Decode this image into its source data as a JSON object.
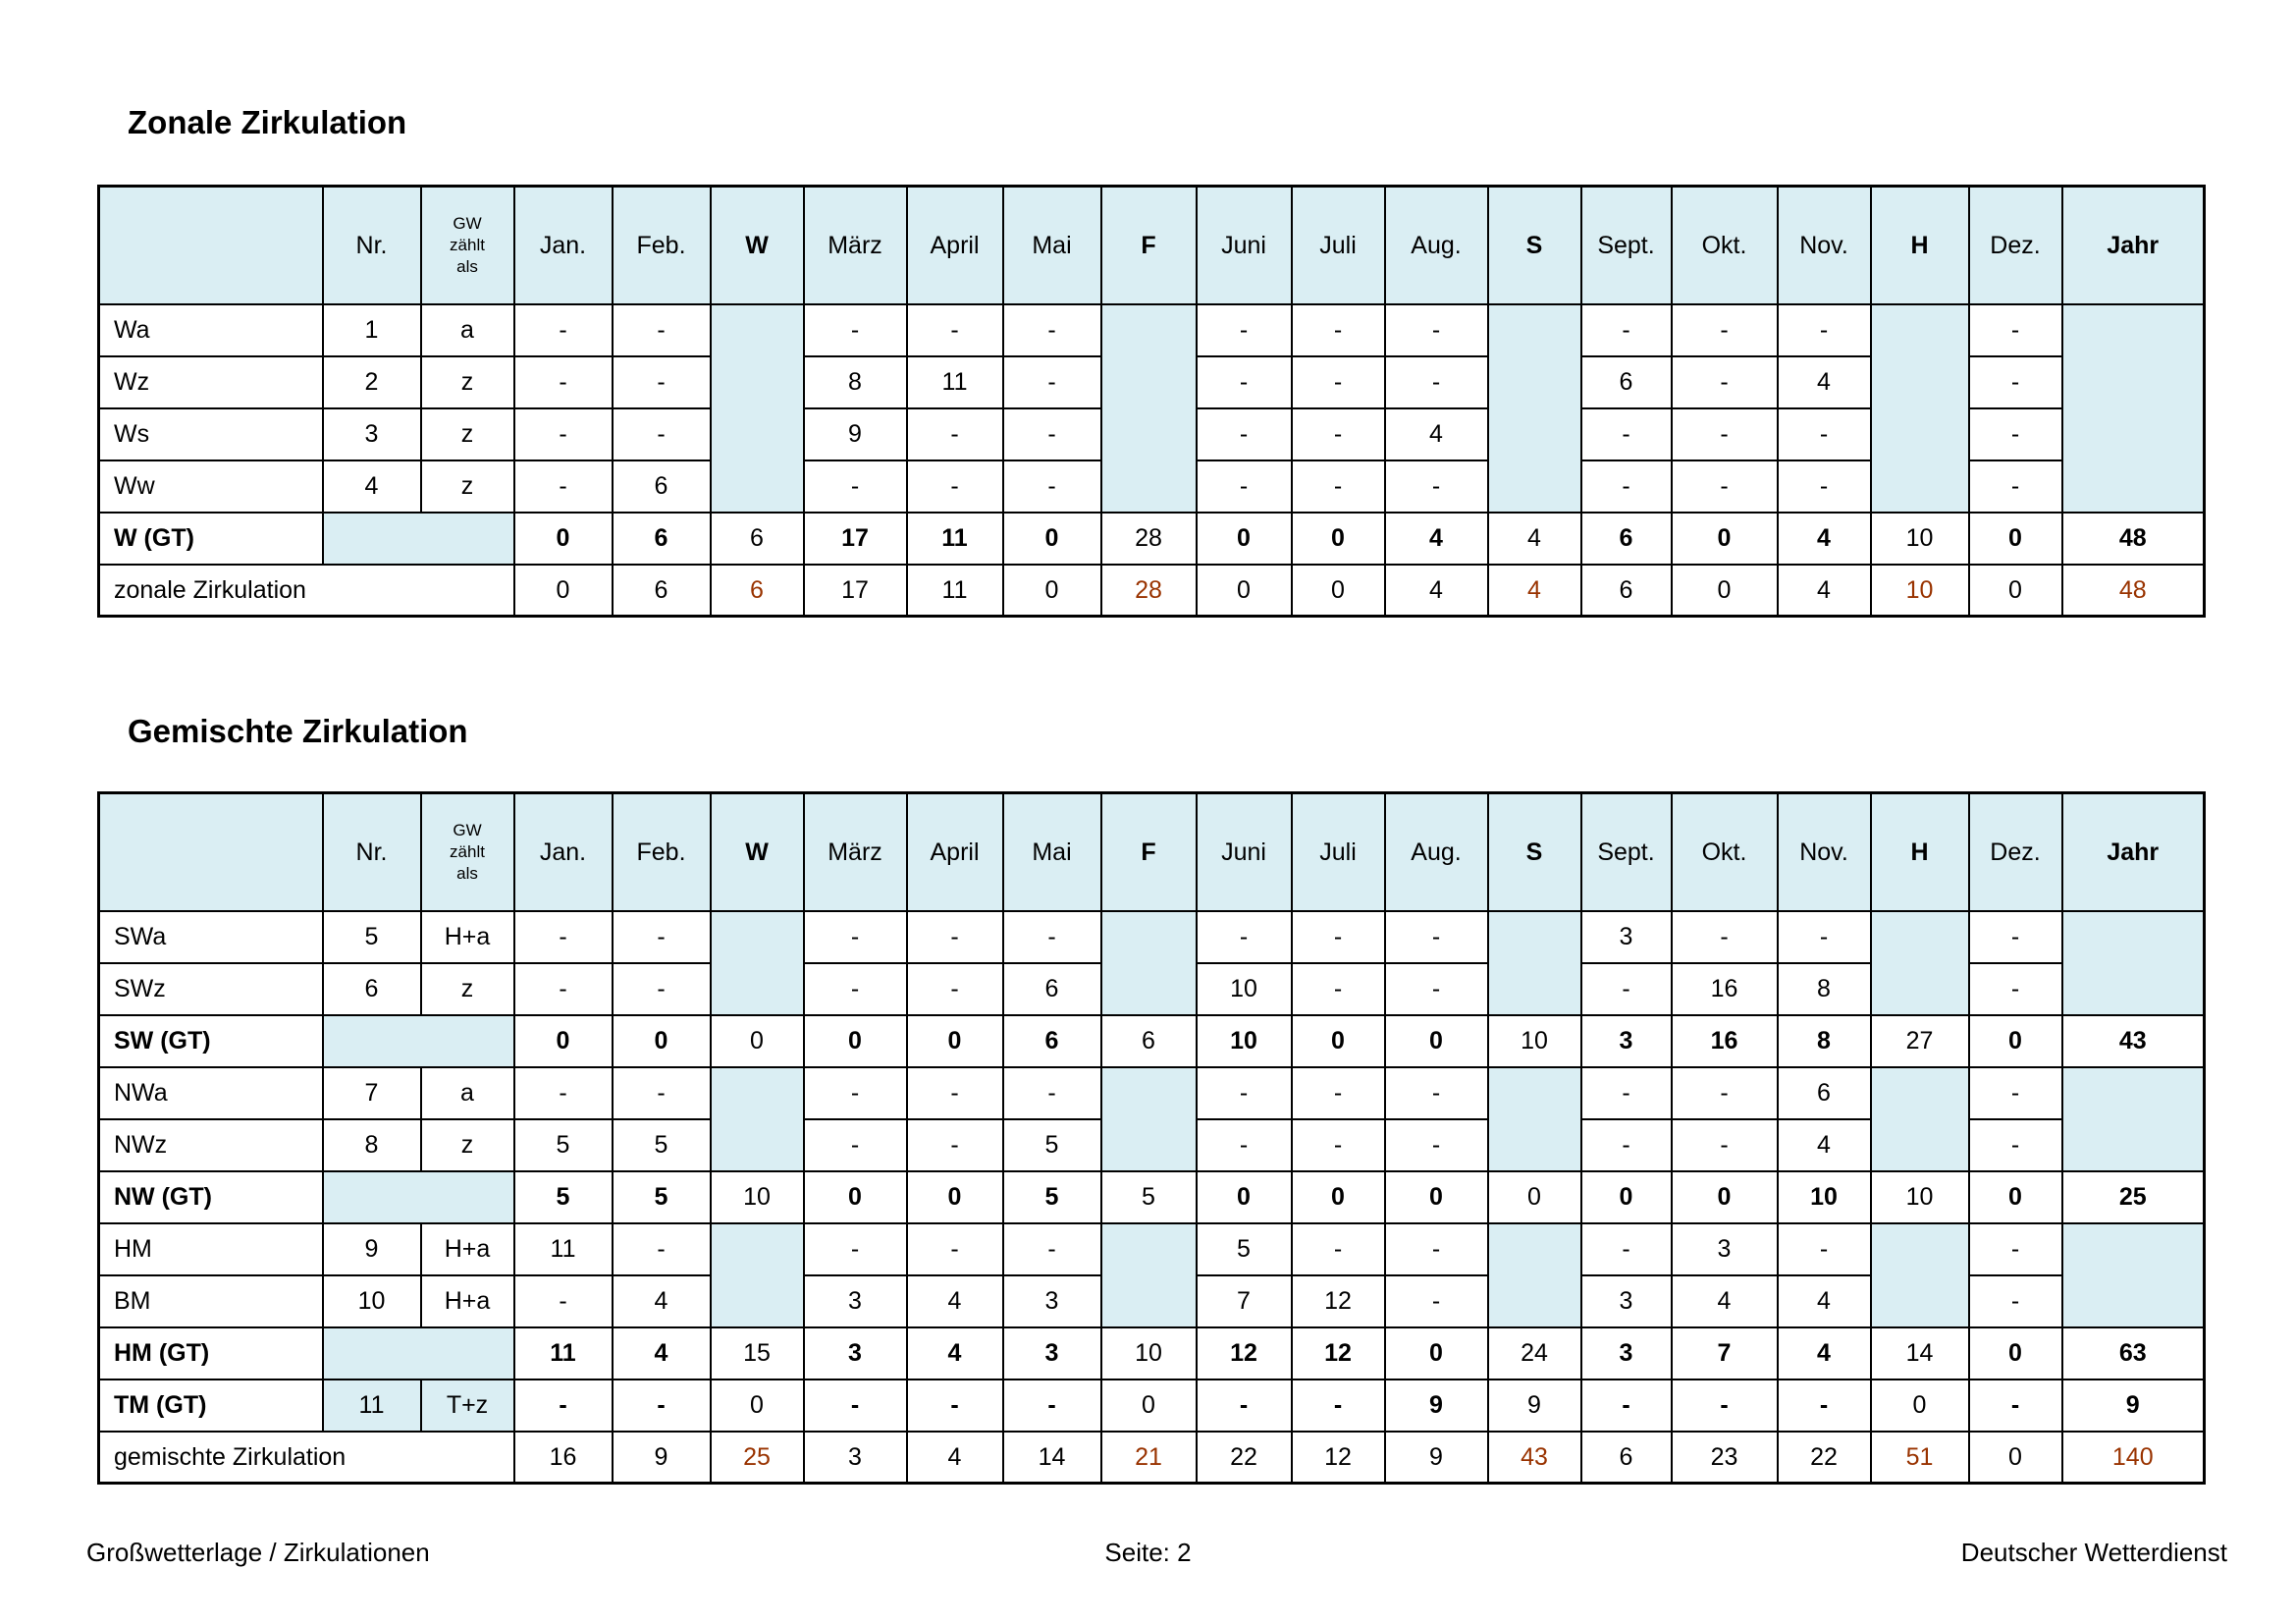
{
  "colors": {
    "header_blue": "#daeef3",
    "summary_bg": "#eef0dd",
    "accent_red": "#993300"
  },
  "footer": {
    "left": "Großwetterlage / Zirkulationen",
    "center": "Seite: 2",
    "right": "Deutscher Wetterdienst"
  },
  "columns": [
    {
      "key": "label",
      "label": "",
      "kind": "label"
    },
    {
      "key": "nr",
      "label": "Nr.",
      "kind": "plain"
    },
    {
      "key": "gw",
      "label": "GW zählt als",
      "kind": "gw",
      "lines": [
        "GW",
        "zählt",
        "als"
      ]
    },
    {
      "key": "jan",
      "label": "Jan.",
      "kind": "month"
    },
    {
      "key": "feb",
      "label": "Feb.",
      "kind": "month"
    },
    {
      "key": "w",
      "label": "W",
      "kind": "season"
    },
    {
      "key": "maerz",
      "label": "März",
      "kind": "month"
    },
    {
      "key": "april",
      "label": "April",
      "kind": "month"
    },
    {
      "key": "mai",
      "label": "Mai",
      "kind": "month"
    },
    {
      "key": "f",
      "label": "F",
      "kind": "season"
    },
    {
      "key": "juni",
      "label": "Juni",
      "kind": "month"
    },
    {
      "key": "juli",
      "label": "Juli",
      "kind": "month"
    },
    {
      "key": "aug",
      "label": "Aug.",
      "kind": "month"
    },
    {
      "key": "s",
      "label": "S",
      "kind": "season"
    },
    {
      "key": "sept",
      "label": "Sept.",
      "kind": "month"
    },
    {
      "key": "okt",
      "label": "Okt.",
      "kind": "month"
    },
    {
      "key": "nov",
      "label": "Nov.",
      "kind": "month"
    },
    {
      "key": "h",
      "label": "H",
      "kind": "season"
    },
    {
      "key": "dez",
      "label": "Dez.",
      "kind": "month"
    },
    {
      "key": "jahr",
      "label": "Jahr",
      "kind": "jahr"
    }
  ],
  "tables": [
    {
      "name": "zonale-zirkulation-table",
      "title": "Zonale Zirkulation",
      "rows": [
        {
          "type": "data",
          "label": "Wa",
          "nr": "1",
          "gw": "a",
          "values": [
            "-",
            "-",
            null,
            "-",
            "-",
            "-",
            null,
            "-",
            "-",
            "-",
            null,
            "-",
            "-",
            "-",
            null,
            "-",
            null
          ]
        },
        {
          "type": "data",
          "label": "Wz",
          "nr": "2",
          "gw": "z",
          "values": [
            "-",
            "-",
            null,
            "8",
            "11",
            "-",
            null,
            "-",
            "-",
            "-",
            null,
            "6",
            "-",
            "4",
            null,
            "-",
            null
          ]
        },
        {
          "type": "data",
          "label": "Ws",
          "nr": "3",
          "gw": "z",
          "values": [
            "-",
            "-",
            null,
            "9",
            "-",
            "-",
            null,
            "-",
            "-",
            "4",
            null,
            "-",
            "-",
            "-",
            null,
            "-",
            null
          ]
        },
        {
          "type": "data",
          "label": "Ww",
          "nr": "4",
          "gw": "z",
          "values": [
            "-",
            "6",
            null,
            "-",
            "-",
            "-",
            null,
            "-",
            "-",
            "-",
            null,
            "-",
            "-",
            "-",
            null,
            "-",
            null
          ]
        },
        {
          "type": "gt",
          "label": "W (GT)",
          "nr": "",
          "gw": "",
          "values": [
            "0",
            "6",
            "6",
            "17",
            "11",
            "0",
            "28",
            "0",
            "0",
            "4",
            "4",
            "6",
            "0",
            "4",
            "10",
            "0",
            "48"
          ]
        },
        {
          "type": "summary",
          "label": "zonale Zirkulation",
          "values": [
            "0",
            "6",
            "6",
            "17",
            "11",
            "0",
            "28",
            "0",
            "0",
            "4",
            "4",
            "6",
            "0",
            "4",
            "10",
            "0",
            "48"
          ]
        }
      ]
    },
    {
      "name": "gemischte-zirkulation-table",
      "title": "Gemischte Zirkulation",
      "rows": [
        {
          "type": "data",
          "label": "SWa",
          "nr": "5",
          "gw": "H+a",
          "values": [
            "-",
            "-",
            null,
            "-",
            "-",
            "-",
            null,
            "-",
            "-",
            "-",
            null,
            "3",
            "-",
            "-",
            null,
            "-",
            null
          ]
        },
        {
          "type": "data",
          "label": "SWz",
          "nr": "6",
          "gw": "z",
          "values": [
            "-",
            "-",
            null,
            "-",
            "-",
            "6",
            null,
            "10",
            "-",
            "-",
            null,
            "-",
            "16",
            "8",
            null,
            "-",
            null
          ]
        },
        {
          "type": "gt",
          "label": "SW (GT)",
          "nr": "",
          "gw": "",
          "values": [
            "0",
            "0",
            "0",
            "0",
            "0",
            "6",
            "6",
            "10",
            "0",
            "0",
            "10",
            "3",
            "16",
            "8",
            "27",
            "0",
            "43"
          ]
        },
        {
          "type": "data",
          "label": "NWa",
          "nr": "7",
          "gw": "a",
          "values": [
            "-",
            "-",
            null,
            "-",
            "-",
            "-",
            null,
            "-",
            "-",
            "-",
            null,
            "-",
            "-",
            "6",
            null,
            "-",
            null
          ]
        },
        {
          "type": "data",
          "label": "NWz",
          "nr": "8",
          "gw": "z",
          "values": [
            "5",
            "5",
            null,
            "-",
            "-",
            "5",
            null,
            "-",
            "-",
            "-",
            null,
            "-",
            "-",
            "4",
            null,
            "-",
            null
          ]
        },
        {
          "type": "gt",
          "label": "NW (GT)",
          "nr": "",
          "gw": "",
          "values": [
            "5",
            "5",
            "10",
            "0",
            "0",
            "5",
            "5",
            "0",
            "0",
            "0",
            "0",
            "0",
            "0",
            "10",
            "10",
            "0",
            "25"
          ]
        },
        {
          "type": "data",
          "label": "HM",
          "nr": "9",
          "gw": "H+a",
          "values": [
            "11",
            "-",
            null,
            "-",
            "-",
            "-",
            null,
            "5",
            "-",
            "-",
            null,
            "-",
            "3",
            "-",
            null,
            "-",
            null
          ]
        },
        {
          "type": "data",
          "label": "BM",
          "nr": "10",
          "gw": "H+a",
          "values": [
            "-",
            "4",
            null,
            "3",
            "4",
            "3",
            null,
            "7",
            "12",
            "-",
            null,
            "3",
            "4",
            "4",
            null,
            "-",
            null
          ]
        },
        {
          "type": "gt",
          "label": "HM (GT)",
          "nr": "",
          "gw": "",
          "values": [
            "11",
            "4",
            "15",
            "3",
            "4",
            "3",
            "10",
            "12",
            "12",
            "0",
            "24",
            "3",
            "7",
            "4",
            "14",
            "0",
            "63"
          ]
        },
        {
          "type": "gt",
          "label": "TM (GT)",
          "nr": "11",
          "gw": "T+z",
          "values": [
            "-",
            "-",
            "0",
            "-",
            "-",
            "-",
            "0",
            "-",
            "-",
            "9",
            "9",
            "-",
            "-",
            "-",
            "0",
            "-",
            "9"
          ]
        },
        {
          "type": "summary",
          "label": "gemischte Zirkulation",
          "values": [
            "16",
            "9",
            "25",
            "3",
            "4",
            "14",
            "21",
            "22",
            "12",
            "9",
            "43",
            "6",
            "23",
            "22",
            "51",
            "0",
            "140"
          ]
        }
      ]
    }
  ]
}
